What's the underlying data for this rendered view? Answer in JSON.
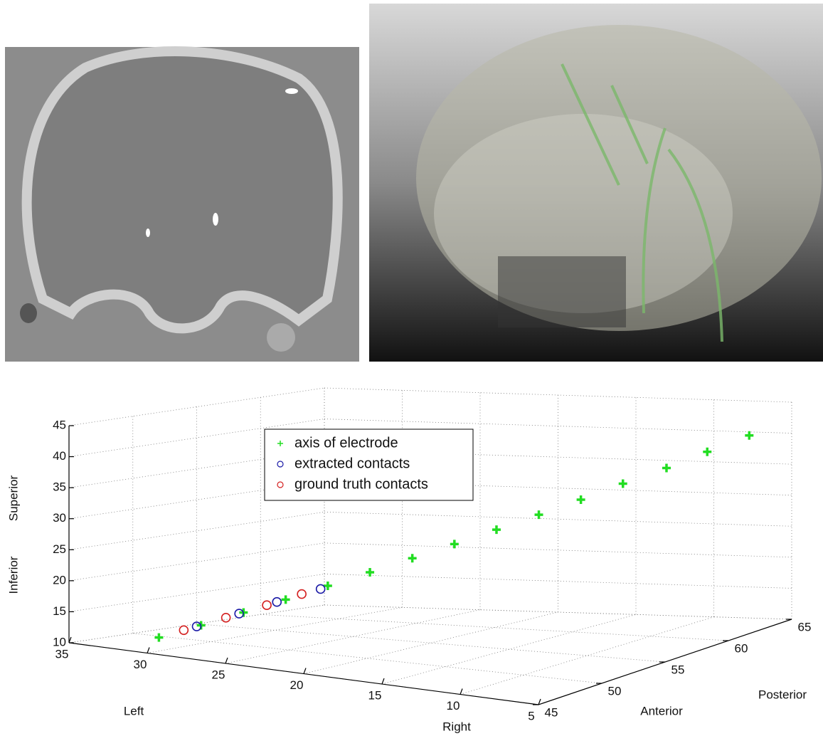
{
  "chart_data": {
    "type": "scatter3d",
    "xlim": [
      5,
      35
    ],
    "ylim": [
      45,
      65
    ],
    "zlim": [
      10,
      45
    ],
    "xdir": "reverse",
    "xticks": [
      5,
      10,
      15,
      20,
      25,
      30,
      35
    ],
    "yticks": [
      45,
      50,
      55,
      60,
      65
    ],
    "zticks": [
      10,
      15,
      20,
      25,
      30,
      35,
      40,
      45
    ],
    "grid": true,
    "legend": "upper center",
    "xlabel_left": "Left",
    "xlabel_right": "Right",
    "ylabel_front": "Anterior",
    "ylabel_back": "Posterior",
    "zlabel_top": "Superior",
    "zlabel_bottom": "Inferior",
    "series": [
      {
        "name": "axis of electrode",
        "color": "#22dd22",
        "marker": "+",
        "x": [
          31.7,
          29.9,
          28.0,
          26.2,
          24.4,
          22.6,
          20.7,
          18.9,
          17.1,
          15.2,
          13.4,
          11.6,
          9.7,
          7.9,
          6.1
        ],
        "y": [
          48.0,
          49.1,
          50.1,
          51.2,
          52.3,
          53.4,
          54.4,
          55.5,
          56.6,
          57.6,
          58.7,
          59.8,
          60.9,
          61.9,
          63.0
        ],
        "z": [
          10.9,
          13.0,
          15.2,
          17.3,
          19.5,
          21.6,
          23.8,
          25.9,
          28.0,
          30.2,
          32.3,
          34.5,
          36.6,
          38.8,
          40.9
        ]
      },
      {
        "name": "extracted contacts",
        "color": "#1a1aa6",
        "marker": "o",
        "x": [
          30.1,
          28.2,
          26.6,
          24.7
        ],
        "y": [
          49.0,
          50.0,
          51.0,
          52.1
        ],
        "z": [
          12.8,
          15.0,
          16.9,
          19.0
        ]
      },
      {
        "name": "ground truth contacts",
        "color": "#d42020",
        "marker": "o",
        "x": [
          30.6,
          28.8,
          27.0,
          25.5
        ],
        "y": [
          48.6,
          49.7,
          50.7,
          51.6
        ],
        "z": [
          12.2,
          14.3,
          16.4,
          18.2
        ]
      }
    ]
  }
}
